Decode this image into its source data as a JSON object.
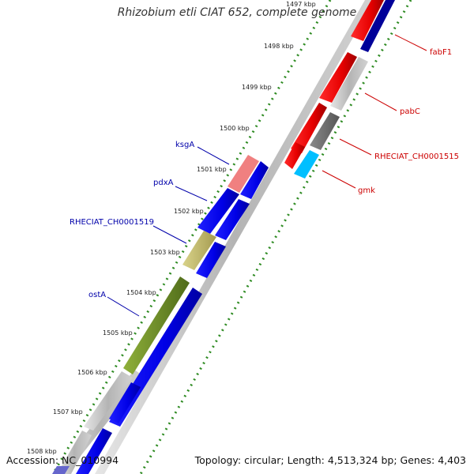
{
  "title": "Rhizobium etli CIAT 652, complete genome",
  "footer": {
    "accession": "Accession: NC_010994",
    "summary": "Topology: circular; Length: 4,513,324 bp; Genes: 4,403"
  },
  "axis_labels": [
    {
      "label": "1497 kbp"
    },
    {
      "label": "1498 kbp"
    },
    {
      "label": "1499 kbp"
    },
    {
      "label": "1500 kbp"
    },
    {
      "label": "1501 kbp"
    },
    {
      "label": "1502 kbp"
    },
    {
      "label": "1503 kbp"
    },
    {
      "label": "1504 kbp"
    },
    {
      "label": "1505 kbp"
    },
    {
      "label": "1506 kbp"
    },
    {
      "label": "1507 kbp"
    },
    {
      "label": "1508 kbp"
    }
  ],
  "gene_labels": [
    {
      "name": "fabF1",
      "color": "#cc0000"
    },
    {
      "name": "pabC",
      "color": "#cc0000"
    },
    {
      "name": "RHECIAT_CH0001515",
      "color": "#cc0000"
    },
    {
      "name": "gmk",
      "color": "#cc0000"
    },
    {
      "name": "ksgA",
      "color": "#0000aa"
    },
    {
      "name": "pdxA",
      "color": "#0000aa"
    },
    {
      "name": "RHECIAT_CH0001519",
      "color": "#0000aa"
    },
    {
      "name": "ostA",
      "color": "#0000aa"
    }
  ],
  "colors": {
    "dotted_track": "#2e8b22",
    "forward_cds": "#0000ee",
    "reverse_cds": "#ee0000",
    "backbone": "#c0c0c0",
    "pink_feature": "#f08080",
    "khaki_feature": "#bdb76b",
    "olive_feature": "#6b8e23",
    "cyan_feature": "#00bfff",
    "navy_feature": "#000099"
  }
}
